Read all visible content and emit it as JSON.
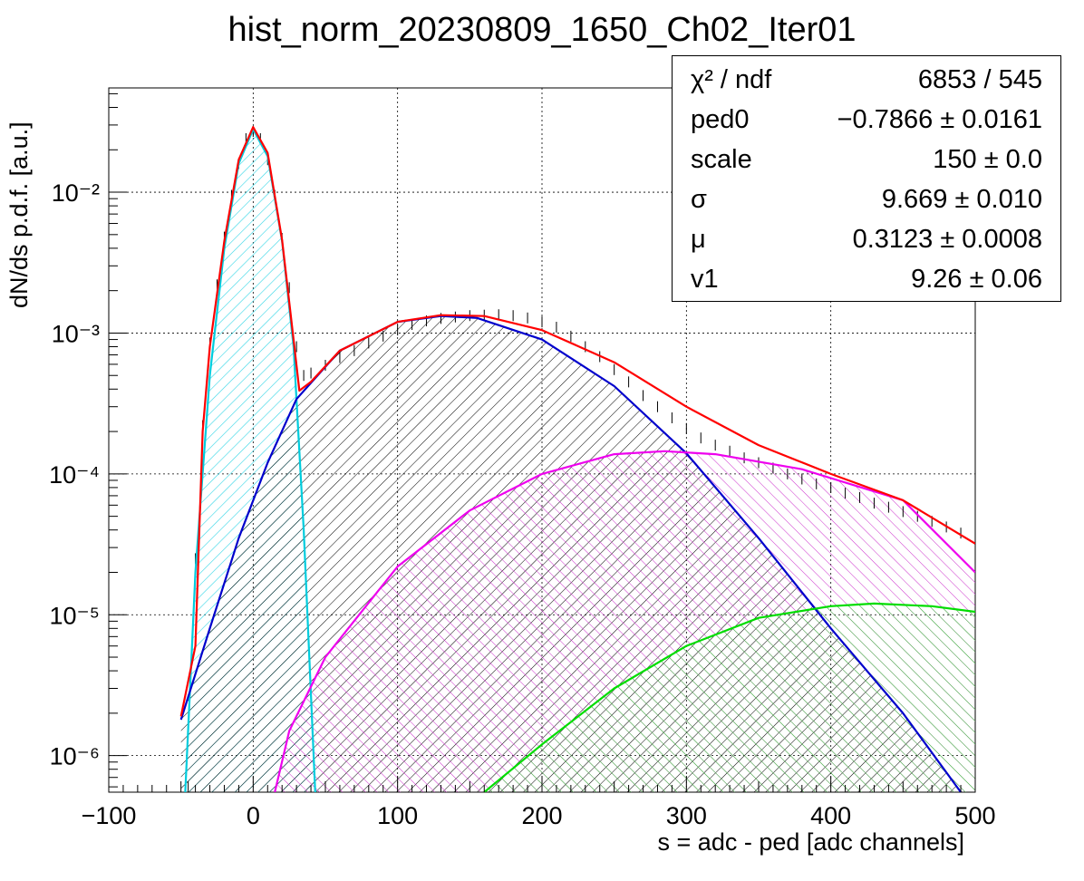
{
  "page": {
    "title": "hist_norm_20230809_1650_Ch02_Iter01"
  },
  "stats": [
    {
      "name": "χ² / ndf",
      "value": "6853 / 545"
    },
    {
      "name": "ped0",
      "value": "−0.7866 ± 0.0161"
    },
    {
      "name": "scale",
      "value": "150 ± 0.0"
    },
    {
      "name": "σ",
      "value": "9.669 ± 0.010"
    },
    {
      "name": "μ",
      "value": "0.3123 ± 0.0008"
    },
    {
      "name": "v1",
      "value": "9.26 ± 0.06"
    }
  ],
  "chart_data": {
    "type": "line",
    "title": "hist_norm_20230809_1650_Ch02_Iter01",
    "xlabel": "s = adc - ped [adc channels]",
    "ylabel": "dN/ds p.d.f. [a.u.]",
    "xlim": [
      -100,
      500
    ],
    "ylim": [
      5.5e-07,
      0.055
    ],
    "y_scale": "log",
    "grid": true,
    "legend": "stats box top-right",
    "x_ticks": [
      "−100",
      "0",
      "100",
      "200",
      "300",
      "400",
      "500"
    ],
    "y_ticks": [
      "10⁻⁶",
      "10⁻⁵",
      "10⁻⁴",
      "10⁻³",
      "10⁻²"
    ],
    "series": [
      {
        "color": "#00ccdd",
        "fill": "#7fe6ee",
        "hatch": true,
        "points": [
          [
            -47,
            5.5e-07
          ],
          [
            -40,
            2e-05
          ],
          [
            -30,
            0.0005
          ],
          [
            -20,
            0.004
          ],
          [
            -10,
            0.016
          ],
          [
            0,
            0.028
          ],
          [
            10,
            0.018
          ],
          [
            20,
            0.0045
          ],
          [
            28,
            0.0008
          ],
          [
            35,
            4e-05
          ],
          [
            43,
            5.5e-07
          ]
        ]
      },
      {
        "color": "#0000cc",
        "fill": "#000000",
        "hatch": true,
        "points": [
          [
            -50,
            1.8e-06
          ],
          [
            -30,
            8e-06
          ],
          [
            -10,
            3.5e-05
          ],
          [
            10,
            0.00012
          ],
          [
            30,
            0.00034
          ],
          [
            60,
            0.00075
          ],
          [
            100,
            0.0012
          ],
          [
            130,
            0.00132
          ],
          [
            155,
            0.00128
          ],
          [
            200,
            0.0009
          ],
          [
            250,
            0.00042
          ],
          [
            300,
            0.00014
          ],
          [
            350,
            3.5e-05
          ],
          [
            400,
            8e-06
          ],
          [
            450,
            2e-06
          ],
          [
            490,
            5.5e-07
          ]
        ]
      },
      {
        "color": "#ee00ee",
        "fill": "#cc33cc",
        "hatch": true,
        "points": [
          [
            15,
            5.5e-07
          ],
          [
            25,
            1.5e-06
          ],
          [
            50,
            5e-06
          ],
          [
            100,
            2.2e-05
          ],
          [
            150,
            5.5e-05
          ],
          [
            200,
            0.0001
          ],
          [
            250,
            0.000138
          ],
          [
            285,
            0.000145
          ],
          [
            320,
            0.000138
          ],
          [
            380,
            0.000108
          ],
          [
            450,
            6.5e-05
          ],
          [
            500,
            2e-05
          ]
        ]
      },
      {
        "color": "#00dd00",
        "fill": "#33cc33",
        "hatch": true,
        "points": [
          [
            160,
            5.5e-07
          ],
          [
            200,
            1.2e-06
          ],
          [
            250,
            3e-06
          ],
          [
            300,
            6e-06
          ],
          [
            350,
            9.5e-06
          ],
          [
            400,
            1.15e-05
          ],
          [
            430,
            1.2e-05
          ],
          [
            470,
            1.15e-05
          ],
          [
            500,
            1.05e-05
          ]
        ]
      },
      {
        "color": "#ff0000",
        "points": [
          [
            -50,
            1.9e-06
          ],
          [
            -40,
            6e-06
          ],
          [
            -35,
            0.0002
          ],
          [
            -30,
            0.0008
          ],
          [
            -20,
            0.0045
          ],
          [
            -10,
            0.017
          ],
          [
            0,
            0.029
          ],
          [
            10,
            0.019
          ],
          [
            20,
            0.0046
          ],
          [
            28,
            0.0009
          ],
          [
            32,
            0.00039
          ],
          [
            40,
            0.00045
          ],
          [
            60,
            0.00075
          ],
          [
            100,
            0.0012
          ],
          [
            130,
            0.00134
          ],
          [
            160,
            0.00132
          ],
          [
            200,
            0.00105
          ],
          [
            250,
            0.00062
          ],
          [
            300,
            0.0003
          ],
          [
            350,
            0.00016
          ],
          [
            400,
            0.0001
          ],
          [
            450,
            6.5e-05
          ],
          [
            500,
            3.2e-05
          ]
        ]
      }
    ],
    "histogram": {
      "color": "#000000",
      "points": [
        [
          -45,
          6e-07
        ],
        [
          -40,
          2.5e-05
        ],
        [
          -35,
          0.00022
        ],
        [
          -30,
          0.00085
        ],
        [
          -25,
          0.0022
        ],
        [
          -20,
          0.0048
        ],
        [
          -15,
          0.0095
        ],
        [
          -10,
          0.016
        ],
        [
          -5,
          0.024
        ],
        [
          0,
          0.027
        ],
        [
          5,
          0.024
        ],
        [
          10,
          0.017
        ],
        [
          15,
          0.0095
        ],
        [
          20,
          0.0047
        ],
        [
          25,
          0.0021
        ],
        [
          30,
          0.0008
        ],
        [
          35,
          0.0005
        ],
        [
          40,
          0.00052
        ],
        [
          50,
          0.00059
        ],
        [
          60,
          0.00067
        ],
        [
          70,
          0.00075
        ],
        [
          80,
          0.00085
        ],
        [
          90,
          0.00095
        ],
        [
          100,
          0.00105
        ],
        [
          110,
          0.00115
        ],
        [
          120,
          0.00122
        ],
        [
          130,
          0.00127
        ],
        [
          140,
          0.0013
        ],
        [
          150,
          0.00133
        ],
        [
          160,
          0.00134
        ],
        [
          170,
          0.00135
        ],
        [
          180,
          0.00133
        ],
        [
          190,
          0.00128
        ],
        [
          200,
          0.0012
        ],
        [
          210,
          0.0011
        ],
        [
          220,
          0.00095
        ],
        [
          230,
          0.0008
        ],
        [
          240,
          0.00068
        ],
        [
          250,
          0.00055
        ],
        [
          260,
          0.00045
        ],
        [
          270,
          0.00036
        ],
        [
          280,
          0.0003
        ],
        [
          290,
          0.00025
        ],
        [
          300,
          0.00021
        ],
        [
          310,
          0.00018
        ],
        [
          320,
          0.00016
        ],
        [
          330,
          0.000145
        ],
        [
          340,
          0.00013
        ],
        [
          350,
          0.00012
        ],
        [
          360,
          0.00011
        ],
        [
          370,
          0.0001
        ],
        [
          380,
          9.2e-05
        ],
        [
          390,
          8.5e-05
        ],
        [
          400,
          8e-05
        ],
        [
          410,
          7.3e-05
        ],
        [
          420,
          6.8e-05
        ],
        [
          430,
          6.2e-05
        ],
        [
          440,
          5.8e-05
        ],
        [
          450,
          5.4e-05
        ],
        [
          460,
          5e-05
        ],
        [
          470,
          4.6e-05
        ],
        [
          480,
          4.2e-05
        ],
        [
          490,
          3.8e-05
        ],
        [
          500,
          3.4e-05
        ]
      ]
    }
  }
}
